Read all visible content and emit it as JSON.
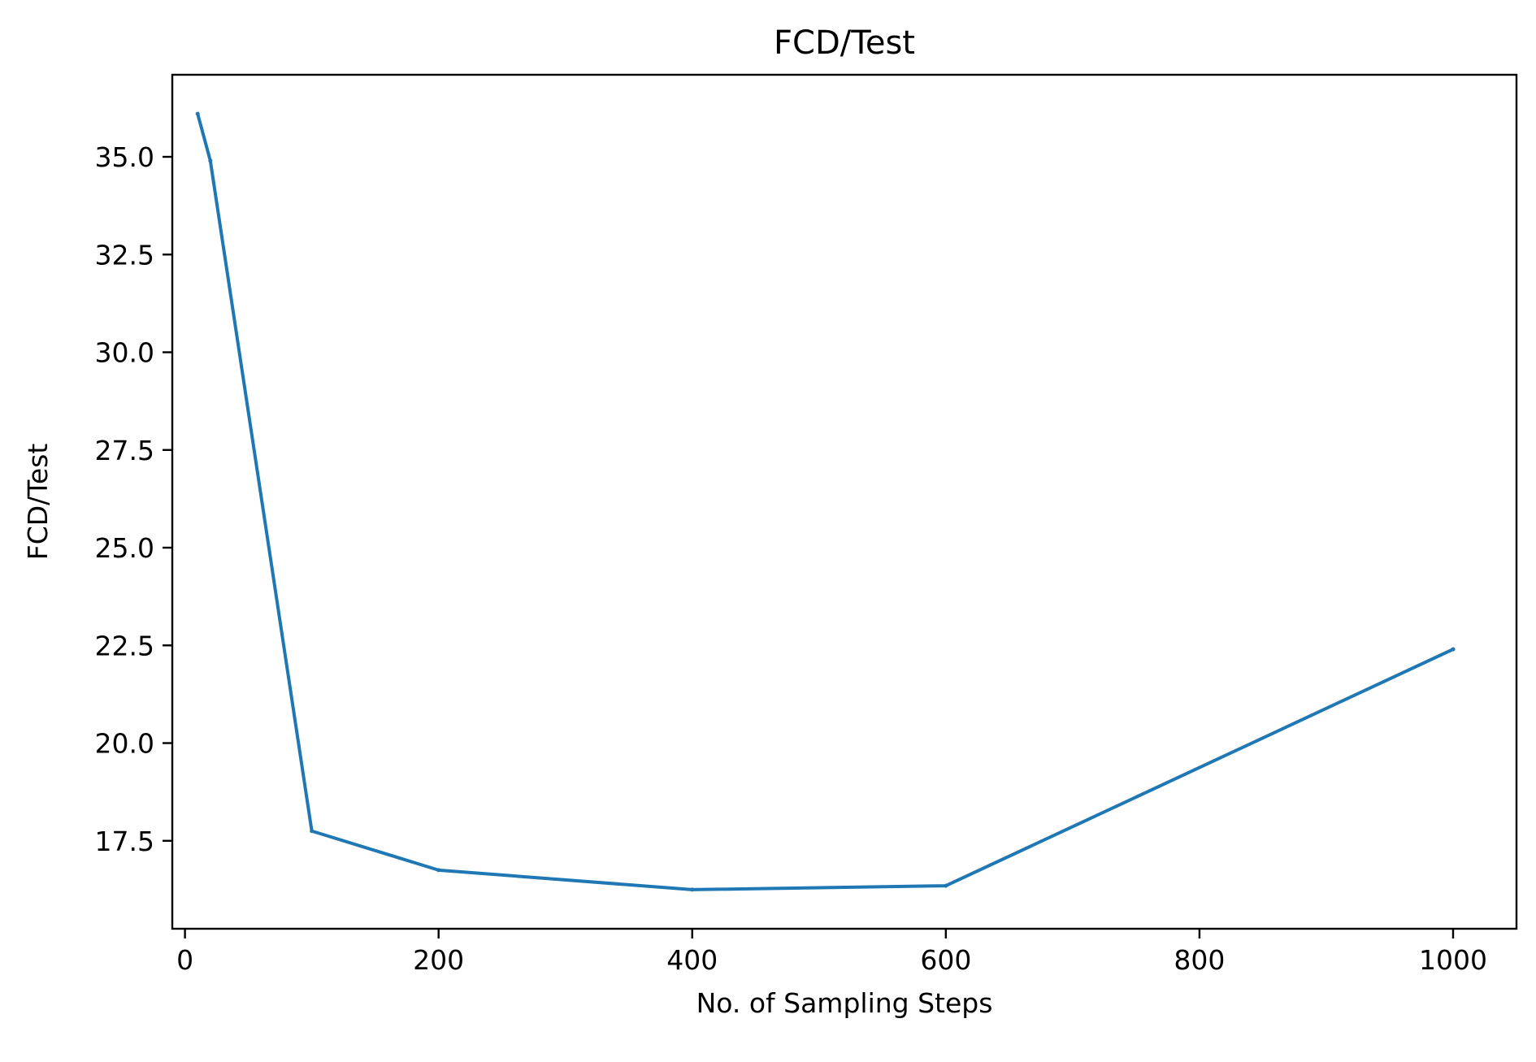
{
  "chart_data": {
    "type": "line",
    "title": "FCD/Test",
    "xlabel": "No. of Sampling Steps",
    "ylabel": "FCD/Test",
    "xlim": [
      -10,
      1050
    ],
    "ylim": [
      15.25,
      37.1
    ],
    "xticks": [
      0,
      200,
      400,
      600,
      800,
      1000
    ],
    "xtick_labels": [
      "0",
      "200",
      "400",
      "600",
      "800",
      "1000"
    ],
    "yticks": [
      17.5,
      20.0,
      22.5,
      25.0,
      27.5,
      30.0,
      32.5,
      35.0
    ],
    "ytick_labels": [
      "17.5",
      "20.0",
      "22.5",
      "25.0",
      "27.5",
      "30.0",
      "32.5",
      "35.0"
    ],
    "grid": false,
    "series": [
      {
        "color": "#1f77b4",
        "x": [
          10,
          20,
          100,
          200,
          400,
          600,
          1000
        ],
        "y": [
          36.1,
          34.9,
          17.75,
          16.75,
          16.25,
          16.35,
          22.4
        ]
      }
    ]
  }
}
